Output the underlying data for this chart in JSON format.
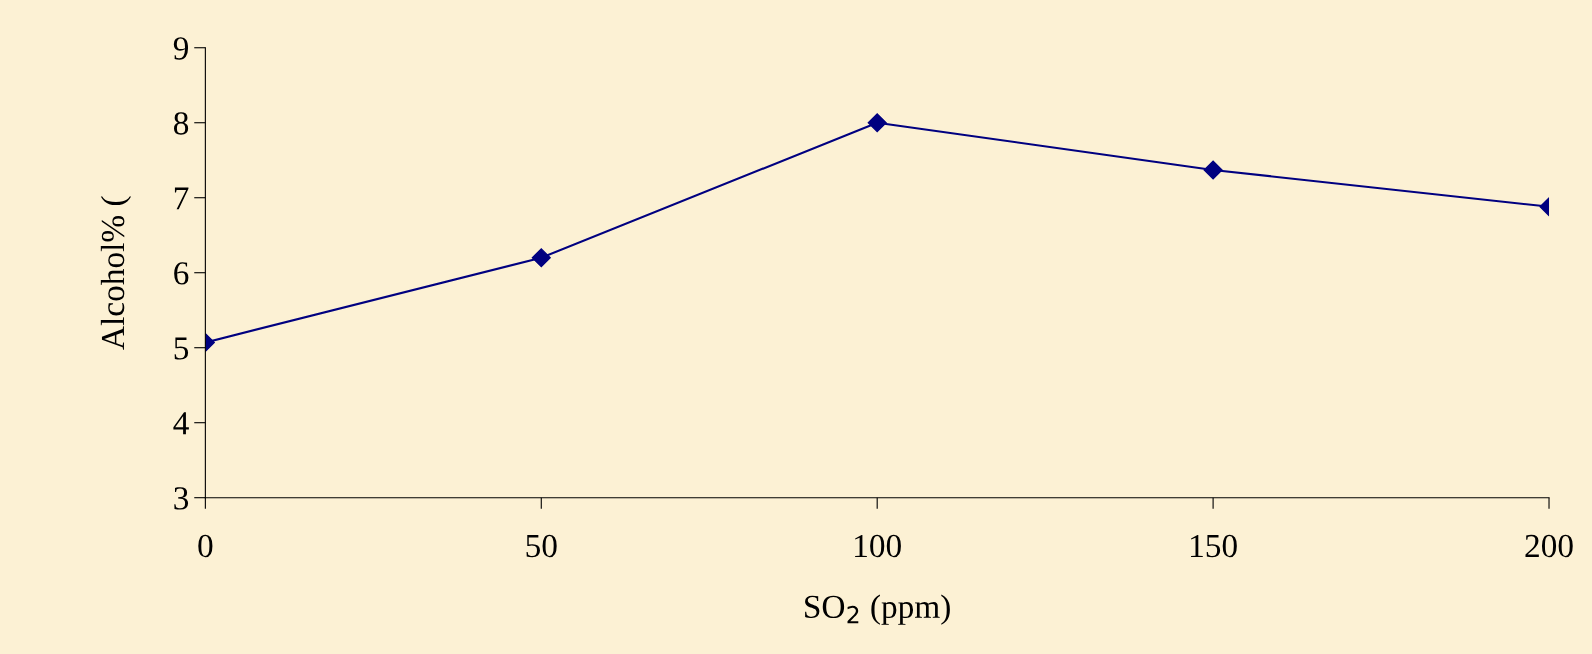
{
  "chart_data": {
    "type": "line",
    "xlabel": "SO$_{2}$ (ppm)",
    "ylabel": "Alcohol% (",
    "x": [
      0,
      50,
      100,
      150,
      200
    ],
    "series": [
      {
        "color": "#000080",
        "values": [
          5.07,
          6.2,
          8.0,
          7.37,
          6.88
        ]
      }
    ],
    "xlim": [
      0,
      200
    ],
    "xticks": [
      0,
      50,
      100,
      150,
      200
    ],
    "ylim": [
      3,
      9
    ],
    "yticks": [
      3,
      4,
      5,
      6,
      7,
      8,
      9
    ],
    "marker": "diamond",
    "line_style": "solid",
    "grid": false,
    "legend": false
  }
}
